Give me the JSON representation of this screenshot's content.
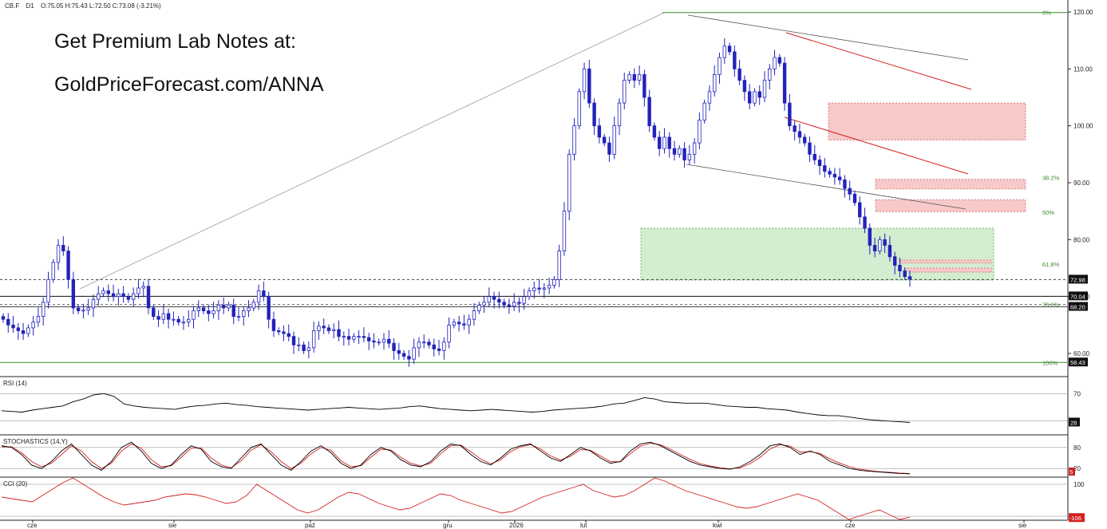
{
  "header": {
    "symbol": "CB.F",
    "interval": "D1",
    "ohlc": "O:75.05  H:75.43  L:72.50  C:73.08  (-3.21%)"
  },
  "promo": {
    "line1": "Get Premium Lab Notes at:",
    "line2": "GoldPriceForecast.com/ANNA"
  },
  "colors": {
    "candle_up": "#ffffff",
    "candle_down": "#2222bb",
    "fib_green": "#3a8a2a",
    "red_zone_fill": "#f7c9c9",
    "green_zone_fill": "#d4ecd0",
    "rsi_line": "#000000",
    "stoch_k": "#000000",
    "stoch_d": "#d42020",
    "cci_line": "#d42020"
  },
  "chart_data": [
    {
      "type": "candlestick",
      "title": "CB.F D1",
      "x_labels": [
        "cze",
        "sie",
        "paź",
        "gru",
        "2026",
        "lut",
        "kwi",
        "cze",
        "sie"
      ],
      "y_ticks": [
        60.0,
        70.0,
        80.0,
        90.0,
        100.0,
        110.0,
        120.0
      ],
      "ylim": [
        57,
        120.5
      ],
      "last_close": 73.08,
      "price_labels": [
        "72.98",
        "70.04",
        "68.20",
        "58.43"
      ],
      "fibonacci": [
        {
          "label": "0%",
          "price": 119.9
        },
        {
          "label": "38.2%",
          "price": 90.9
        },
        {
          "label": "50%",
          "price": 84.8
        },
        {
          "label": "61.8%",
          "price": 75.7
        },
        {
          "label": "78.6%",
          "price": 68.6
        },
        {
          "label": "100%",
          "price": 58.4
        }
      ],
      "horizontal_lines": [
        72.98,
        70.04,
        68.6,
        68.2,
        58.43
      ],
      "zones": [
        {
          "kind": "support",
          "color": "green",
          "from": 72.9,
          "to": 82.0
        },
        {
          "kind": "resistance",
          "color": "red",
          "from": 97.5,
          "to": 104.0
        },
        {
          "kind": "resistance",
          "color": "red",
          "from": 88.9,
          "to": 90.6
        },
        {
          "kind": "resistance",
          "color": "red",
          "from": 84.9,
          "to": 87.0
        },
        {
          "kind": "resistance",
          "color": "red",
          "from": 75.9,
          "to": 76.4
        },
        {
          "kind": "resistance",
          "color": "red",
          "from": 74.3,
          "to": 75.0
        }
      ],
      "series": [
        {
          "name": "",
          "values": [
            66,
            65,
            64.5,
            64,
            63.5,
            64.5,
            65.5,
            66.5,
            69,
            73,
            76,
            79,
            78,
            73,
            68,
            67.5,
            67.6,
            68,
            69.5,
            70.5,
            71,
            70.5,
            70,
            70.5,
            70,
            69.5,
            70.5,
            71.5,
            71.8,
            68,
            66.5,
            66,
            67,
            66,
            66,
            65.5,
            65.5,
            66,
            67.5,
            68,
            67.5,
            67,
            67.5,
            68.5,
            68,
            68.5,
            66.5,
            66.5,
            67.5,
            68,
            69,
            71,
            70,
            66,
            64,
            63.8,
            63.5,
            63,
            61.5,
            61.5,
            60.5,
            61,
            64,
            64.8,
            64.5,
            64,
            64.2,
            63,
            63,
            62.5,
            63,
            63,
            62.8,
            62.2,
            62,
            62,
            62.5,
            61.8,
            60.5,
            60,
            59.5,
            59,
            61,
            62,
            62,
            61.5,
            60.8,
            60.5,
            62,
            65,
            65.5,
            65.2,
            65,
            66,
            67.5,
            68.5,
            69,
            70,
            69.5,
            69,
            68.5,
            68.3,
            69,
            68.8,
            70,
            71,
            71.5,
            71.3,
            71.5,
            72,
            73,
            78,
            85,
            95,
            100,
            106,
            110,
            104,
            100,
            98,
            97,
            95,
            100,
            104,
            108,
            109,
            108,
            109,
            105,
            100,
            98,
            96,
            98,
            96,
            95,
            96,
            94,
            95,
            97,
            101,
            104,
            106,
            109,
            112,
            114,
            113,
            110,
            108,
            106,
            104,
            106,
            105,
            108,
            110,
            112,
            111,
            104,
            100,
            99,
            98,
            97,
            95,
            94,
            93,
            92,
            91.5,
            91,
            90.5,
            89,
            88,
            86.5,
            84,
            82,
            79,
            78,
            80,
            79,
            77,
            75.5,
            74.5,
            73.5,
            73.08
          ]
        }
      ]
    },
    {
      "type": "line",
      "title": "RSI (14)",
      "y_ticks": [
        70
      ],
      "last_value_label": "28",
      "series": [
        {
          "name": "",
          "values": [
            45,
            44,
            43,
            46,
            48,
            50,
            52,
            58,
            62,
            68,
            70,
            66,
            55,
            52,
            50,
            49,
            48,
            47,
            50,
            52,
            53,
            55,
            56,
            54,
            53,
            51,
            50,
            49,
            48,
            47,
            46,
            47,
            48,
            49,
            50,
            49,
            48,
            47,
            48,
            49,
            51,
            52,
            50,
            48,
            47,
            46,
            45,
            46,
            47,
            46,
            45,
            44,
            43,
            44,
            46,
            47,
            48,
            49,
            50,
            52,
            55,
            56,
            60,
            64,
            62,
            58,
            57,
            56,
            56,
            56,
            54,
            52,
            51,
            50,
            50,
            48,
            47,
            46,
            43,
            41,
            39,
            38,
            38,
            36,
            34,
            32,
            31,
            30,
            29,
            28
          ]
        }
      ]
    },
    {
      "type": "line",
      "title": "STOCHASTICS (14,Y)",
      "y_ticks": [
        80,
        20
      ],
      "last_value_label": "5",
      "series": [
        {
          "name": "",
          "values": [
            85,
            80,
            60,
            30,
            20,
            40,
            70,
            90,
            60,
            30,
            15,
            40,
            80,
            95,
            70,
            35,
            20,
            30,
            60,
            85,
            75,
            40,
            25,
            20,
            50,
            80,
            90,
            60,
            30,
            15,
            40,
            70,
            85,
            65,
            35,
            20,
            30,
            60,
            80,
            70,
            45,
            30,
            25,
            40,
            70,
            90,
            85,
            60,
            40,
            30,
            50,
            75,
            85,
            90,
            70,
            50,
            40,
            60,
            80,
            70,
            50,
            35,
            40,
            70,
            90,
            95,
            85,
            70,
            55,
            40,
            30,
            25,
            20,
            18,
            25,
            40,
            60,
            85,
            90,
            80,
            60,
            70,
            60,
            40,
            30,
            20,
            15,
            12,
            10,
            8,
            6,
            5
          ]
        },
        {
          "name": "",
          "values": [
            82,
            82,
            65,
            40,
            25,
            35,
            60,
            85,
            70,
            40,
            20,
            35,
            70,
            90,
            78,
            45,
            25,
            28,
            52,
            78,
            78,
            50,
            30,
            22,
            42,
            72,
            88,
            68,
            40,
            20,
            35,
            62,
            80,
            72,
            42,
            25,
            28,
            52,
            75,
            73,
            52,
            35,
            27,
            35,
            62,
            85,
            87,
            68,
            47,
            33,
            45,
            68,
            82,
            88,
            76,
            56,
            44,
            55,
            74,
            72,
            56,
            40,
            39,
            62,
            84,
            92,
            88,
            75,
            60,
            46,
            34,
            27,
            22,
            19,
            22,
            34,
            52,
            76,
            88,
            84,
            67,
            68,
            63,
            47,
            35,
            25,
            18,
            14,
            11,
            9,
            7,
            6
          ]
        }
      ]
    },
    {
      "type": "line",
      "title": "CCI (20)",
      "y_ticks": [
        100
      ],
      "last_value_label": "-106",
      "series": [
        {
          "name": "",
          "values": [
            20,
            10,
            0,
            -10,
            30,
            70,
            110,
            140,
            100,
            60,
            20,
            -10,
            -30,
            -20,
            -10,
            0,
            20,
            30,
            40,
            35,
            20,
            0,
            -20,
            -10,
            30,
            100,
            60,
            20,
            -20,
            -60,
            -80,
            -60,
            -20,
            20,
            50,
            40,
            10,
            -20,
            -40,
            -60,
            -50,
            -20,
            10,
            40,
            30,
            0,
            -20,
            -40,
            -60,
            -80,
            -70,
            -40,
            -10,
            20,
            40,
            60,
            80,
            100,
            60,
            40,
            20,
            30,
            60,
            100,
            140,
            120,
            90,
            60,
            40,
            20,
            0,
            -20,
            -40,
            -50,
            -40,
            -20,
            0,
            20,
            40,
            20,
            0,
            -40,
            -80,
            -120,
            -100,
            -80,
            -60,
            -90,
            -120,
            -106
          ]
        }
      ]
    }
  ]
}
